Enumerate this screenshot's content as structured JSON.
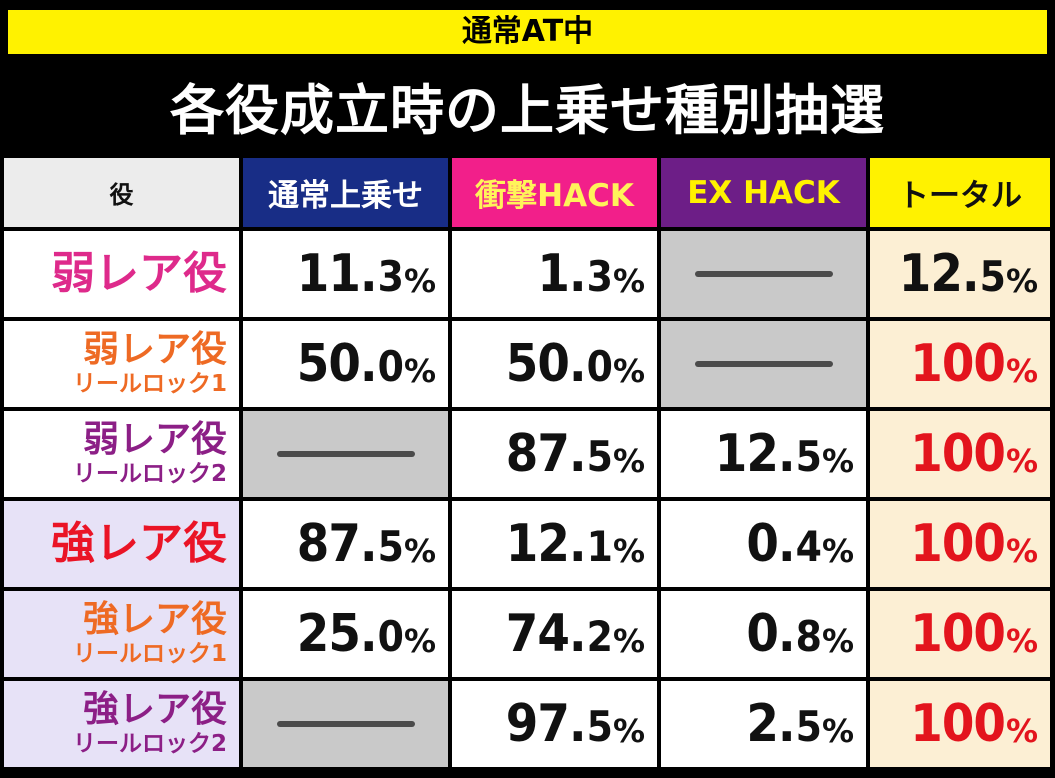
{
  "header": {
    "banner": "通常AT中",
    "title": "各役成立時の上乗せ種別抽選"
  },
  "table": {
    "columns": [
      "役",
      "通常上乗せ",
      "衝撃HACK",
      "EX HACK",
      "トータル"
    ],
    "rows": [
      {
        "role_main": "弱レア役",
        "role_sub": "",
        "normal": "11.3%",
        "shock": "1.3%",
        "ex": "—",
        "total": "12.5%"
      },
      {
        "role_main": "弱レア役",
        "role_sub": "リールロック1",
        "normal": "50.0%",
        "shock": "50.0%",
        "ex": "—",
        "total": "100%"
      },
      {
        "role_main": "弱レア役",
        "role_sub": "リールロック2",
        "normal": "—",
        "shock": "87.5%",
        "ex": "12.5%",
        "total": "100%"
      },
      {
        "role_main": "強レア役",
        "role_sub": "",
        "normal": "87.5%",
        "shock": "12.1%",
        "ex": "0.4%",
        "total": "100%"
      },
      {
        "role_main": "強レア役",
        "role_sub": "リールロック1",
        "normal": "25.0%",
        "shock": "74.2%",
        "ex": "0.8%",
        "total": "100%"
      },
      {
        "role_main": "強レア役",
        "role_sub": "リールロック2",
        "normal": "—",
        "shock": "97.5%",
        "ex": "2.5%",
        "total": "100%"
      }
    ]
  }
}
